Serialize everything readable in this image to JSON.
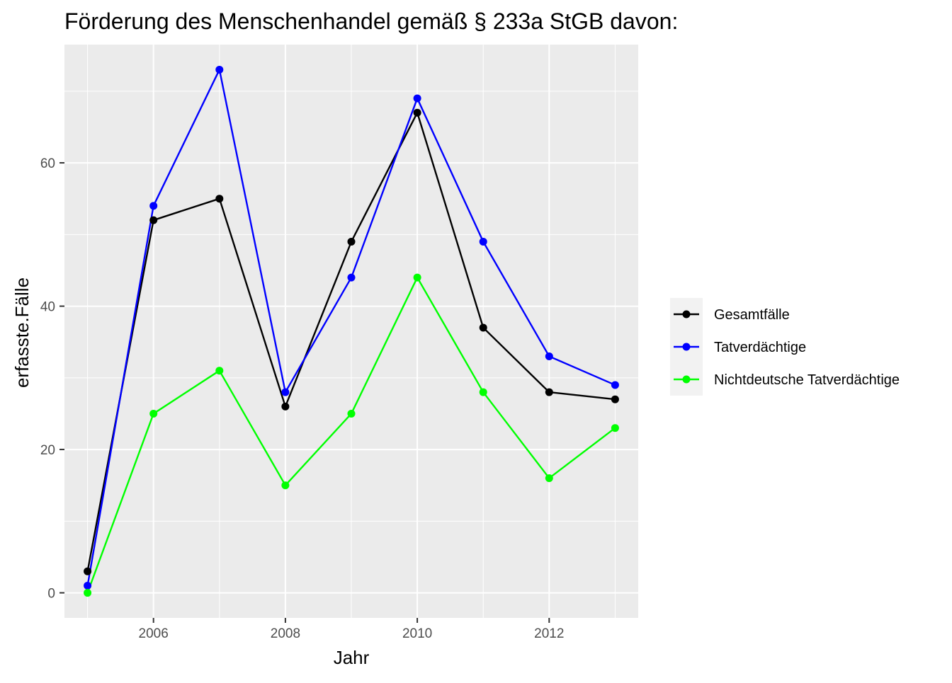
{
  "chart_data": {
    "type": "line",
    "title": "Förderung des Menschenhandel gemäß § 233a StGB davon:",
    "xlabel": "Jahr",
    "ylabel": "erfasste.Fälle",
    "x": [
      2005,
      2006,
      2007,
      2008,
      2009,
      2010,
      2011,
      2012,
      2013
    ],
    "xlim": [
      2004.65,
      2013.35
    ],
    "ylim": [
      -3.5,
      76.5
    ],
    "x_ticks": [
      2006,
      2008,
      2010,
      2012
    ],
    "x_tick_labels": [
      "2006",
      "2008",
      "2010",
      "2012"
    ],
    "y_ticks": [
      0,
      20,
      40,
      60
    ],
    "y_tick_labels": [
      "0",
      "20",
      "40",
      "60"
    ],
    "grid": true,
    "legend_position": "right",
    "series": [
      {
        "name": "Gesamtfälle",
        "color": "#000000",
        "values": [
          3,
          52,
          55,
          26,
          49,
          67,
          37,
          28,
          27
        ]
      },
      {
        "name": "Tatverdächtige",
        "color": "#0000FF",
        "values": [
          1,
          54,
          73,
          28,
          44,
          69,
          49,
          33,
          29
        ]
      },
      {
        "name": "Nichtdeutsche Tatverdächtige",
        "color": "#00FF00",
        "values": [
          0,
          25,
          31,
          15,
          25,
          44,
          28,
          16,
          23
        ]
      }
    ],
    "panel_background": "#EBEBEB",
    "grid_color": "#FFFFFF"
  }
}
